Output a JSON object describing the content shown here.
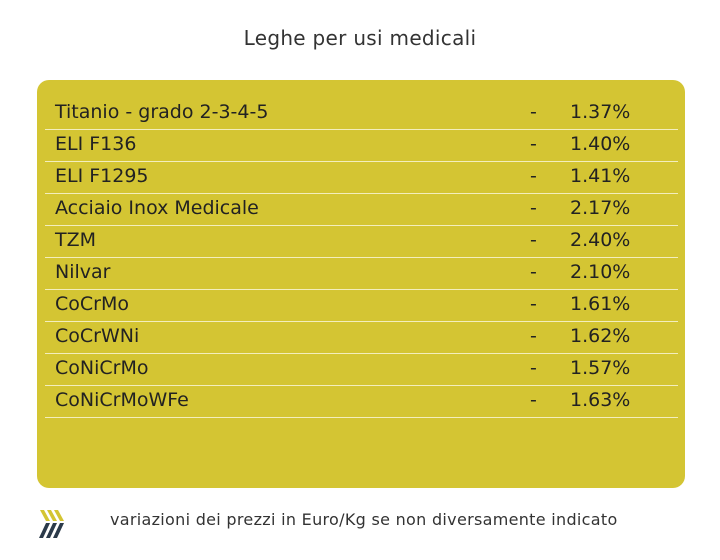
{
  "title": "Leghe per usi medicali",
  "rows": [
    {
      "name": "Titanio - grado 2-3-4-5",
      "change": "-",
      "percent": "1.37%"
    },
    {
      "name": "ELI F136",
      "change": "-",
      "percent": "1.40%"
    },
    {
      "name": "ELI F1295",
      "change": "-",
      "percent": "1.41%"
    },
    {
      "name": "Acciaio Inox Medicale",
      "change": "-",
      "percent": "2.17%"
    },
    {
      "name": "TZM",
      "change": "-",
      "percent": "2.40%"
    },
    {
      "name": "Nilvar",
      "change": "-",
      "percent": "2.10%"
    },
    {
      "name": "CoCrMo",
      "change": "-",
      "percent": "1.61%"
    },
    {
      "name": "CoCrWNi",
      "change": "-",
      "percent": "1.62%"
    },
    {
      "name": "CoNiCrMo",
      "change": "-",
      "percent": "1.57%"
    },
    {
      "name": "CoNiCrMoWFe",
      "change": "-",
      "percent": "1.63%"
    }
  ],
  "footer": {
    "note": "variazioni dei prezzi in Euro/Kg se non diversamente indicato",
    "logo_icon": "stripes-logo-icon"
  },
  "colors": {
    "panel": "#d4c533",
    "row_divider": "#f3eebd",
    "logo_yellow": "#d4c533",
    "logo_dark": "#2b3a4a"
  }
}
